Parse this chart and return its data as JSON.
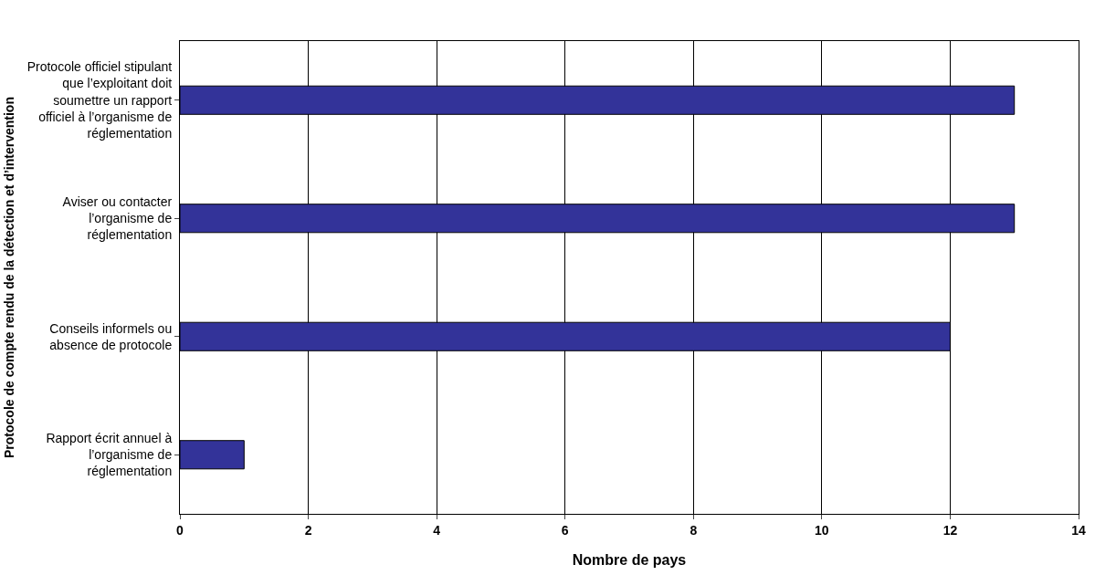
{
  "chart_data": {
    "type": "bar",
    "orientation": "horizontal",
    "ylabel": "Protocole de compte rendu de la détection et d’intervention",
    "xlabel": "Nombre de pays",
    "categories": [
      "Protocole officiel stipulant que l’exploitant doit soumettre un rapport officiel à l’organisme de réglementation",
      "Aviser ou contacter l’organisme de réglementation",
      "Conseils informels ou absence de protocole",
      "Rapport écrit annuel à l’organisme de réglementation"
    ],
    "values": [
      13,
      13,
      12,
      1
    ],
    "color": "#333399",
    "xlim": [
      0,
      14
    ],
    "xticks": [
      0,
      2,
      4,
      6,
      8,
      10,
      12,
      14
    ],
    "grid": "x"
  }
}
